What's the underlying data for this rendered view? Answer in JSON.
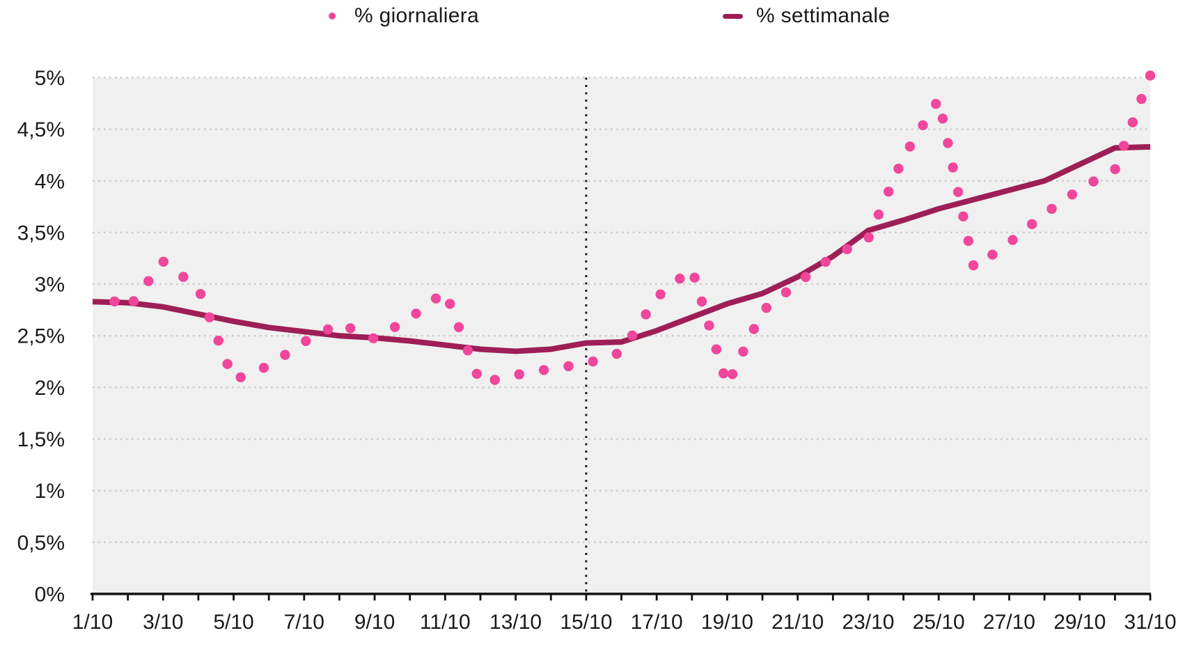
{
  "legend": {
    "items": [
      {
        "label": "% giornaliera",
        "marker": "dot-icon",
        "color": "#f0469b"
      },
      {
        "label": "% settimanale",
        "marker": "line-icon",
        "color": "#9e1e56"
      }
    ]
  },
  "chart_data": {
    "type": "line",
    "title": "",
    "xlabel": "",
    "ylabel": "",
    "x_axis_tick_labels": [
      "1/10",
      "3/10",
      "5/10",
      "7/10",
      "9/10",
      "11/10",
      "13/10",
      "15/10",
      "17/10",
      "19/10",
      "21/10",
      "23/10",
      "25/10",
      "27/10",
      "29/10",
      "31/10"
    ],
    "y_axis_tick_labels": [
      "0%",
      "0,5%",
      "1%",
      "1,5%",
      "2%",
      "2,5%",
      "3%",
      "3,5%",
      "4%",
      "4,5%",
      "5%"
    ],
    "ylim": [
      0,
      5
    ],
    "y_step": 0.5,
    "grid": {
      "horizontal": true,
      "style": "dotted",
      "color": "#cacaca"
    },
    "plot_background": "#f0f0f0",
    "axis_color": "#111111",
    "vline": {
      "at_label": "15/10",
      "day_index": 14,
      "style": "dotted",
      "color": "#111111"
    },
    "series": [
      {
        "name": "% giornaliera",
        "style": "dotted-path",
        "color": "#f0469b",
        "values": [
          2.95,
          2.76,
          3.22,
          2.96,
          2.07,
          2.21,
          2.44,
          2.62,
          2.47,
          2.67,
          2.93,
          2.04,
          2.12,
          2.18,
          2.23,
          2.34,
          2.87,
          3.15,
          2.02,
          2.74,
          3.01,
          3.27,
          3.44,
          4.23,
          4.79,
          3.16,
          3.4,
          3.68,
          3.92,
          4.11,
          5.02
        ]
      },
      {
        "name": "% settimanale",
        "style": "solid-line",
        "color": "#9e1e56",
        "values": [
          2.83,
          2.82,
          2.78,
          2.71,
          2.64,
          2.58,
          2.54,
          2.5,
          2.48,
          2.45,
          2.41,
          2.37,
          2.35,
          2.37,
          2.43,
          2.44,
          2.55,
          2.68,
          2.81,
          2.91,
          3.07,
          3.27,
          3.52,
          3.62,
          3.73,
          3.82,
          3.91,
          4.0,
          4.16,
          4.32,
          4.33
        ]
      }
    ],
    "legend_position": "top-center"
  }
}
